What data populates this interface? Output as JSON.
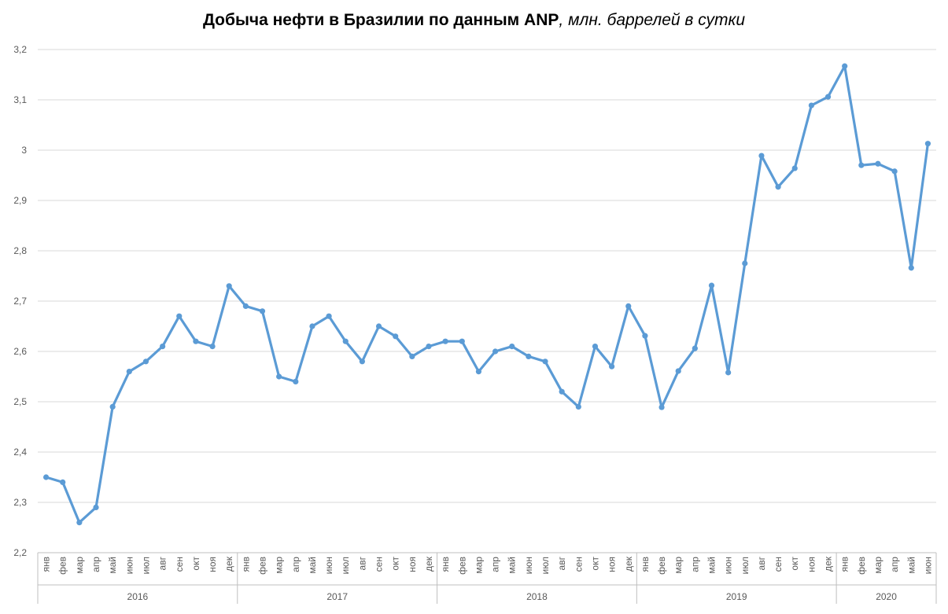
{
  "chart_data": {
    "type": "line",
    "title": "Добыча нефти в Бразилии по данным ANP",
    "subtitle": ", млн. баррелей в сутки",
    "xlabel": "",
    "ylabel": "",
    "ylim": [
      2.2,
      3.2
    ],
    "yticks": [
      "2,2",
      "2,3",
      "2,4",
      "2,5",
      "2,6",
      "2,7",
      "2,8",
      "2,9",
      "3",
      "3,1",
      "3,2"
    ],
    "grid": true,
    "color": "#5b9bd5",
    "months": [
      "янв",
      "фев",
      "мар",
      "апр",
      "май",
      "июн",
      "июл",
      "авг",
      "сен",
      "окт",
      "ноя",
      "дек"
    ],
    "years": [
      {
        "label": "2016",
        "count": 12
      },
      {
        "label": "2017",
        "count": 12
      },
      {
        "label": "2018",
        "count": 12
      },
      {
        "label": "2019",
        "count": 12
      },
      {
        "label": "2020",
        "count": 6
      }
    ],
    "series": [
      {
        "name": "Добыча нефти",
        "values": [
          2.35,
          2.34,
          2.26,
          2.29,
          2.49,
          2.56,
          2.58,
          2.61,
          2.67,
          2.62,
          2.61,
          2.73,
          2.69,
          2.68,
          2.55,
          2.54,
          2.65,
          2.67,
          2.62,
          2.58,
          2.65,
          2.63,
          2.59,
          2.61,
          2.62,
          2.62,
          2.56,
          2.6,
          2.61,
          2.59,
          2.58,
          2.52,
          2.49,
          2.61,
          2.57,
          2.69,
          2.631,
          2.489,
          2.561,
          2.606,
          2.731,
          2.558,
          2.775,
          2.989,
          2.927,
          2.964,
          3.089,
          3.106,
          3.167,
          2.97,
          2.973,
          2.958,
          2.766,
          3.013
        ]
      }
    ]
  }
}
